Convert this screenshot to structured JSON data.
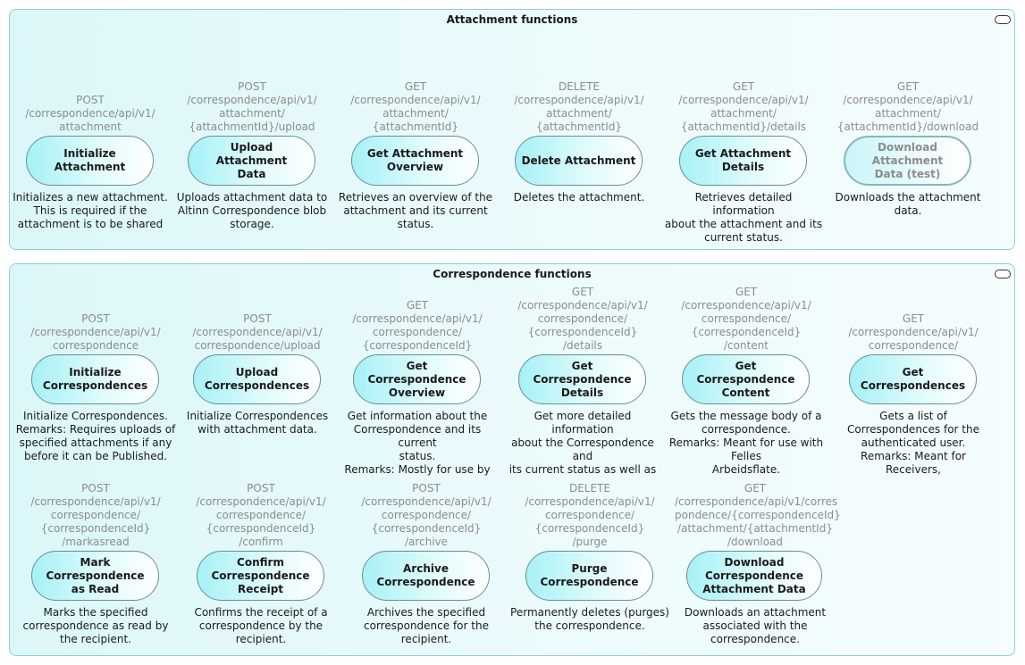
{
  "attachment_group": {
    "title": "Attachment functions",
    "functions": [
      {
        "id": "initialize-attachment",
        "path": "POST\n/correspondence/api/v1/\nattachment",
        "label": "Initialize Attachment",
        "desc": "Initializes a new attachment.\nThis is required if the\nattachment is to be shared"
      },
      {
        "id": "upload-attachment-data",
        "path": "POST\n/correspondence/api/v1/\nattachment/\n{attachmentId}/upload",
        "label": "Upload Attachment\nData",
        "desc": "Uploads attachment data to\nAltinn Correspondence blob\nstorage."
      },
      {
        "id": "get-attachment-overview",
        "path": "GET\n/correspondence/api/v1/\nattachment/\n{attachmentId}",
        "label": "Get Attachment\nOverview",
        "desc": "Retrieves an overview of the\nattachment and its current\nstatus."
      },
      {
        "id": "delete-attachment",
        "path": "DELETE\n/correspondence/api/v1/\nattachment/\n{attachmentId}",
        "label": "Delete Attachment",
        "desc": "Deletes the attachment."
      },
      {
        "id": "get-attachment-details",
        "path": "GET\n/correspondence/api/v1/\nattachment/\n{attachmentId}/details",
        "label": "Get Attachment Details",
        "desc": "Retrieves detailed information\nabout the attachment and its\ncurrent status."
      },
      {
        "id": "download-attachment-data-test",
        "path": "GET\n/correspondence/api/v1/\nattachment/\n{attachmentId}/download",
        "label": "Download Attachment\nData (test)",
        "desc": "Downloads the attachment\ndata."
      }
    ]
  },
  "correspondence_group": {
    "title": "Correspondence functions",
    "row1": [
      {
        "id": "initialize-correspondences",
        "path": "POST\n/correspondence/api/v1/\ncorrespondence",
        "label": "Initialize\nCorrespondences",
        "desc": "Initialize Correspondences.\nRemarks: Requires uploads of\nspecified attachments if any\nbefore it can be Published."
      },
      {
        "id": "upload-correspondences",
        "path": "POST\n/correspondence/api/v1/\ncorrespondence/upload",
        "label": "Upload\nCorrespondences",
        "desc": "Initialize Correspondences\nwith attachment data."
      },
      {
        "id": "get-correspondence-overview",
        "path": "GET\n/correspondence/api/v1/\ncorrespondence/\n{correspondenceId}",
        "label": "Get Correspondence\nOverview",
        "desc": "Get information about the\nCorrespondence and its current\nstatus.\nRemarks:  Mostly for use by\nrecipients and occasional status"
      },
      {
        "id": "get-correspondence-details",
        "path": "GET\n/correspondence/api/v1/\ncorrespondence/\n{correspondenceId}\n/details",
        "label": "Get Correspondence\nDetails",
        "desc": "Get more detailed information\nabout the Correspondence and\nits current status as well as\nnoticiation statuses, if available."
      },
      {
        "id": "get-correspondence-content",
        "path": "GET\n/correspondence/api/v1/\ncorrespondence/\n{correspondenceId}\n/content",
        "label": "Get Correspondence\nContent",
        "desc": "Gets the message body of a\ncorrespondence.\nRemarks: Meant for use with Felles\nArbeidsflate."
      },
      {
        "id": "get-correspondences",
        "path": "GET\n/correspondence/api/v1/\ncorrespondence/",
        "label": "Get Correspondences",
        "desc": "Gets a list of\nCorrespondences for the\nauthenticated user.\nRemarks: Meant for Receivers,\nbut also available for Senders"
      }
    ],
    "row2": [
      {
        "id": "mark-correspondence-as-read",
        "path": "POST\n/correspondence/api/v1/\ncorrespondence/\n{correspondenceId}\n/markasread",
        "label": "Mark Correspondence\nas Read",
        "desc": "Marks the specified\ncorrespondence as read by\nthe recipient."
      },
      {
        "id": "confirm-correspondence-receipt",
        "path": "POST\n/correspondence/api/v1/\ncorrespondence/\n{correspondenceId}\n/confirm",
        "label": "Confirm\nCorrespondence\nReceipt",
        "desc": "Confirms the receipt of a\ncorrespondence by the\nrecipient."
      },
      {
        "id": "archive-correspondence",
        "path": "POST\n/correspondence/api/v1/\ncorrespondence/\n{correspondenceId}\n/archive",
        "label": "Archive\nCorrespondence",
        "desc": "Archives the specified\ncorrespondence for the\nrecipient."
      },
      {
        "id": "purge-correspondence",
        "path": "DELETE\n/correspondence/api/v1/\ncorrespondence/\n{correspondenceId}\n/purge",
        "label": "Purge Correspondence",
        "desc": "Permanently deletes (purges)\nthe correspondence."
      },
      {
        "id": "download-correspondence-attachment-data",
        "path": "GET\n/correspondence/api/v1/corres\npondence/{correspondenceId}\n/attachment/{attachmentId}\n/download",
        "label": "Download\nCorrespondence\nAttachment Data",
        "desc": "Downloads an attachment\nassociated with the\ncorrespondence."
      }
    ]
  }
}
